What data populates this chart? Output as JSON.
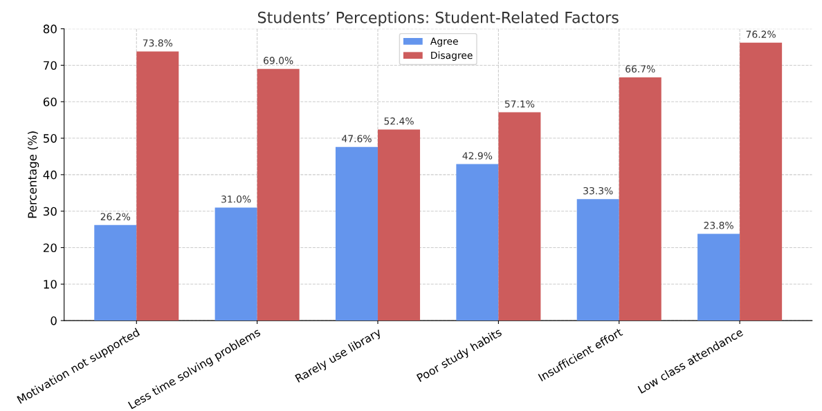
{
  "chart_data": {
    "type": "bar",
    "title": "Students’ Perceptions: Student-Related Factors",
    "ylabel": "Percentage (%)",
    "categories": [
      "Motivation not supported",
      "Less time solving problems",
      "Rarely use library",
      "Poor study habits",
      "Insufficient effort",
      "Low class attendance"
    ],
    "series": [
      {
        "name": "Agree",
        "color": "#6495ed",
        "values": [
          26.2,
          31.0,
          47.6,
          42.9,
          33.3,
          23.8
        ],
        "value_labels": [
          "26.2%",
          "31.0%",
          "47.6%",
          "42.9%",
          "33.3%",
          "23.8%"
        ]
      },
      {
        "name": "Disagree",
        "color": "#cd5c5c",
        "values": [
          73.8,
          69.0,
          52.4,
          57.1,
          66.7,
          76.2
        ],
        "value_labels": [
          "73.8%",
          "69.0%",
          "52.4%",
          "57.1%",
          "66.7%",
          "76.2%"
        ]
      }
    ],
    "ylim": [
      0,
      80
    ],
    "yticks": [
      0,
      10,
      20,
      30,
      40,
      50,
      60,
      70,
      80
    ],
    "grid": true,
    "legend": "top"
  }
}
